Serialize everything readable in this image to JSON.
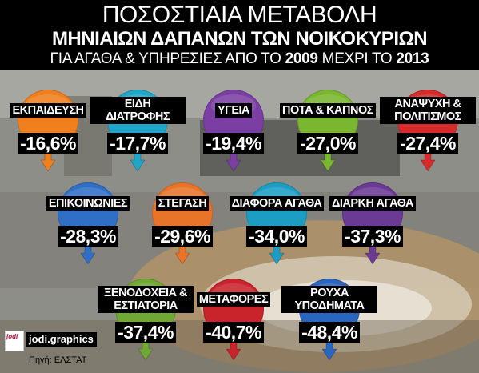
{
  "header": {
    "title": "ΠΟΣΟΣΤΙΑΙΑ ΜΕΤΑΒΟΛΗ",
    "subtitle": "ΜΗΝΙΑΙΩΝ ΔΑΠΑΝΩΝ ΤΩΝ ΝΟΙΚΟΚΥΡΙΩΝ",
    "line3_pre": "ΓΙΑ ΑΓΑΘΑ & ΥΠΗΡΕΣΙΕΣ ΑΠΟ ΤΟ ",
    "line3_year1": "2009",
    "line3_mid": " ΜΕΧΡΙ ΤΟ ",
    "line3_year2": "2013"
  },
  "items": [
    {
      "label": "ΕΚΠΑΙΔΕΥΣΗ",
      "value": "-16,6%",
      "color": "#f07f1e"
    },
    {
      "label": "ΕΙΔΗ ΔΙΑΤΡΟΦΗΣ",
      "value": "-17,7%",
      "color": "#1fa6c8"
    },
    {
      "label": "ΥΓΕΙΑ",
      "value": "-19,4%",
      "color": "#7b3fa3"
    },
    {
      "label": "ΠΟΤΑ & ΚΑΠΝΟΣ",
      "value": "-27,0%",
      "color": "#7ab62f"
    },
    {
      "label": "ΑΝΑΨΥΧΗ & ΠΟΛΙΤΙΣΜΟΣ",
      "value": "-27,4%",
      "color": "#d72b2b"
    },
    {
      "label": "ΕΠΙΚΟΙΝΩΝΙΕΣ",
      "value": "-28,3%",
      "color": "#2f6fc6"
    },
    {
      "label": "ΣΤΕΓΑΣΗ",
      "value": "-29,6%",
      "color": "#e8742a"
    },
    {
      "label": "ΔΙΑΦΟΡΑ ΑΓΑΘΑ",
      "value": "-34,0%",
      "color": "#1c9ec4"
    },
    {
      "label": "ΔΙΑΡΚΗ ΑΓΑΘΑ",
      "value": "-37,3%",
      "color": "#6a3a94"
    },
    {
      "label": "ΞΕΝΟΔΟΧΕΙΑ & ΕΣΤΙΑΤΟΡΙΑ",
      "value": "-37,4%",
      "color": "#6fa833"
    },
    {
      "label": "ΜΕΤΑΦΟΡΕΣ",
      "value": "-40,7%",
      "color": "#c9242b"
    },
    {
      "label": "ΡΟΥΧΑ ΥΠΟΔΗΜΑΤΑ",
      "value": "-48,4%",
      "color": "#2a66bf"
    }
  ],
  "logo": {
    "text": "jodi.graphics"
  },
  "source": "Πηγή: ΕΛΣΤΑΤ"
}
